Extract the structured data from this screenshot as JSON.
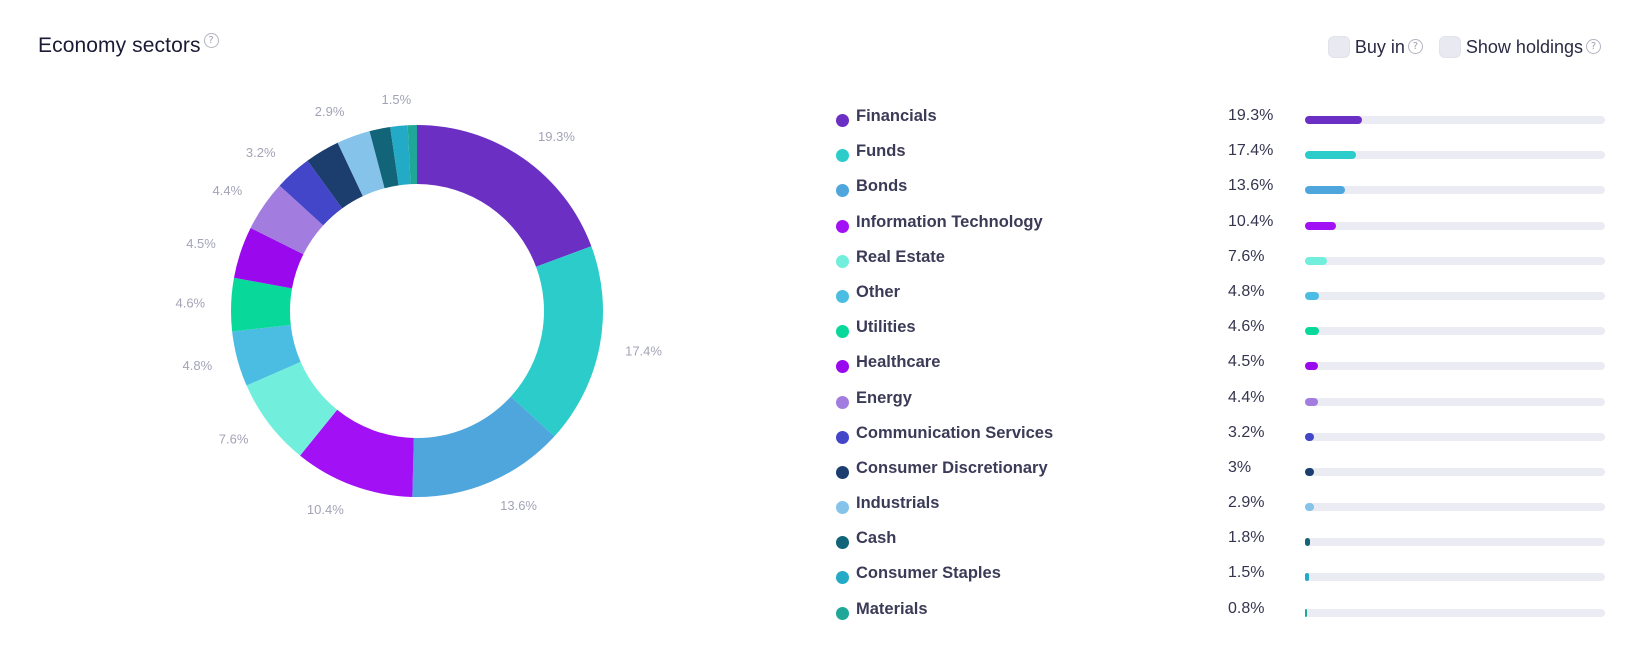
{
  "header": {
    "title": "Economy sectors",
    "help_glyph": "?",
    "buy_in_label": "Buy in",
    "show_holdings_label": "Show holdings"
  },
  "chart_data": {
    "type": "pie",
    "title": "Economy sectors",
    "variant": "donut",
    "unit": "%",
    "categories": [
      "Financials",
      "Funds",
      "Bonds",
      "Information Technology",
      "Real Estate",
      "Other",
      "Utilities",
      "Healthcare",
      "Energy",
      "Communication Services",
      "Consumer Discretionary",
      "Industrials",
      "Cash",
      "Consumer Staples",
      "Materials"
    ],
    "values": [
      19.3,
      17.4,
      13.6,
      10.4,
      7.6,
      4.8,
      4.6,
      4.5,
      4.4,
      3.2,
      3,
      2.9,
      1.8,
      1.5,
      0.8
    ],
    "value_labels": [
      "19.3%",
      "17.4%",
      "13.6%",
      "10.4%",
      "7.6%",
      "4.8%",
      "4.6%",
      "4.5%",
      "4.4%",
      "3.2%",
      "3%",
      "2.9%",
      "1.8%",
      "1.5%",
      "0.8%"
    ],
    "slice_labels_shown": [
      true,
      true,
      true,
      true,
      true,
      true,
      true,
      true,
      true,
      true,
      false,
      true,
      false,
      true,
      false
    ],
    "colors": [
      "#6b2fc4",
      "#2ccccb",
      "#4fa6dc",
      "#a210f5",
      "#72efdc",
      "#4cbde2",
      "#08d99a",
      "#9a08ee",
      "#a27ddf",
      "#4346c9",
      "#1b3e6f",
      "#86c3ea",
      "#126478",
      "#23aac6",
      "#1fa898"
    ]
  }
}
